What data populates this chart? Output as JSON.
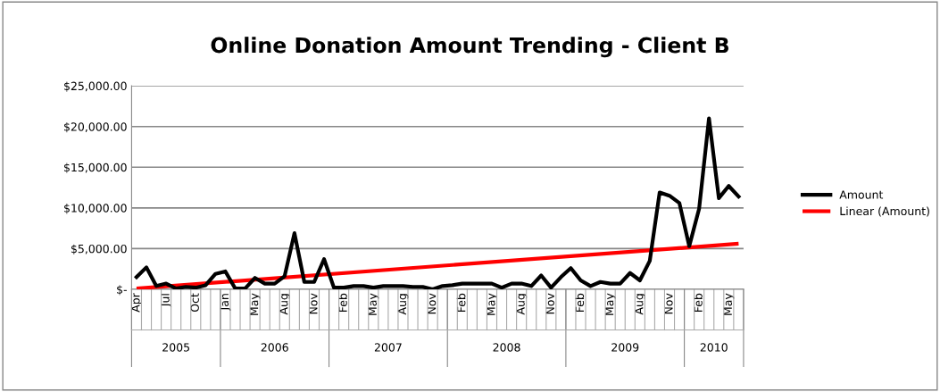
{
  "chart_data": {
    "type": "line",
    "title": "Online Donation Amount Trending - Client B",
    "categories": [
      "Apr",
      null,
      null,
      "Jul",
      null,
      null,
      "Oct",
      null,
      null,
      "Jan",
      null,
      null,
      "May",
      null,
      null,
      "Aug",
      null,
      null,
      "Nov",
      null,
      null,
      "Feb",
      null,
      null,
      "May",
      null,
      null,
      "Aug",
      null,
      null,
      "Nov",
      null,
      null,
      "Feb",
      null,
      null,
      "May",
      null,
      null,
      "Aug",
      null,
      null,
      "Nov",
      null,
      null,
      "Feb",
      null,
      null,
      "May",
      null,
      null,
      "Aug",
      null,
      null,
      "Nov",
      null,
      null,
      "Feb",
      null,
      null,
      "May",
      null
    ],
    "series": [
      {
        "name": "Amount",
        "color": "#000000",
        "values": [
          1500,
          2700,
          400,
          700,
          100,
          300,
          200,
          500,
          1900,
          2200,
          100,
          100,
          1400,
          700,
          700,
          1600,
          6900,
          900,
          900,
          3700,
          200,
          200,
          400,
          400,
          200,
          400,
          400,
          400,
          300,
          300,
          0,
          400,
          500,
          700,
          700,
          700,
          700,
          200,
          700,
          700,
          400,
          1700,
          200,
          1500,
          2600,
          1100,
          400,
          900,
          700,
          700,
          2000,
          1100,
          3500,
          11900,
          11500,
          10600,
          5300,
          9900,
          21000,
          11200,
          12700,
          11400
        ]
      },
      {
        "name": "Linear (Amount)",
        "color": "#ff0000",
        "type": "line",
        "values": [
          100,
          null,
          null,
          null,
          null,
          null,
          null,
          null,
          null,
          null,
          null,
          null,
          null,
          null,
          null,
          null,
          null,
          null,
          null,
          null,
          null,
          null,
          null,
          null,
          null,
          null,
          null,
          null,
          null,
          null,
          null,
          null,
          null,
          null,
          null,
          null,
          null,
          null,
          null,
          null,
          null,
          null,
          null,
          null,
          null,
          null,
          null,
          null,
          null,
          null,
          null,
          null,
          null,
          null,
          null,
          null,
          null,
          null,
          null,
          null,
          null,
          5600
        ]
      }
    ],
    "ylim": [
      0,
      25000
    ],
    "yticks": [
      {
        "value": 0,
        "label": "$-"
      },
      {
        "value": 5000,
        "label": "$5,000.00"
      },
      {
        "value": 10000,
        "label": "$10,000.00"
      },
      {
        "value": 15000,
        "label": "$15,000.00"
      },
      {
        "value": 20000,
        "label": "$20,000.00"
      },
      {
        "value": 25000,
        "label": "$25,000.00"
      }
    ],
    "annotations": [
      "2005",
      "2006",
      "2007",
      "2008",
      "2009",
      "2010"
    ],
    "grid": "y",
    "legend": "right",
    "marker": "none",
    "line_style": "solid"
  }
}
